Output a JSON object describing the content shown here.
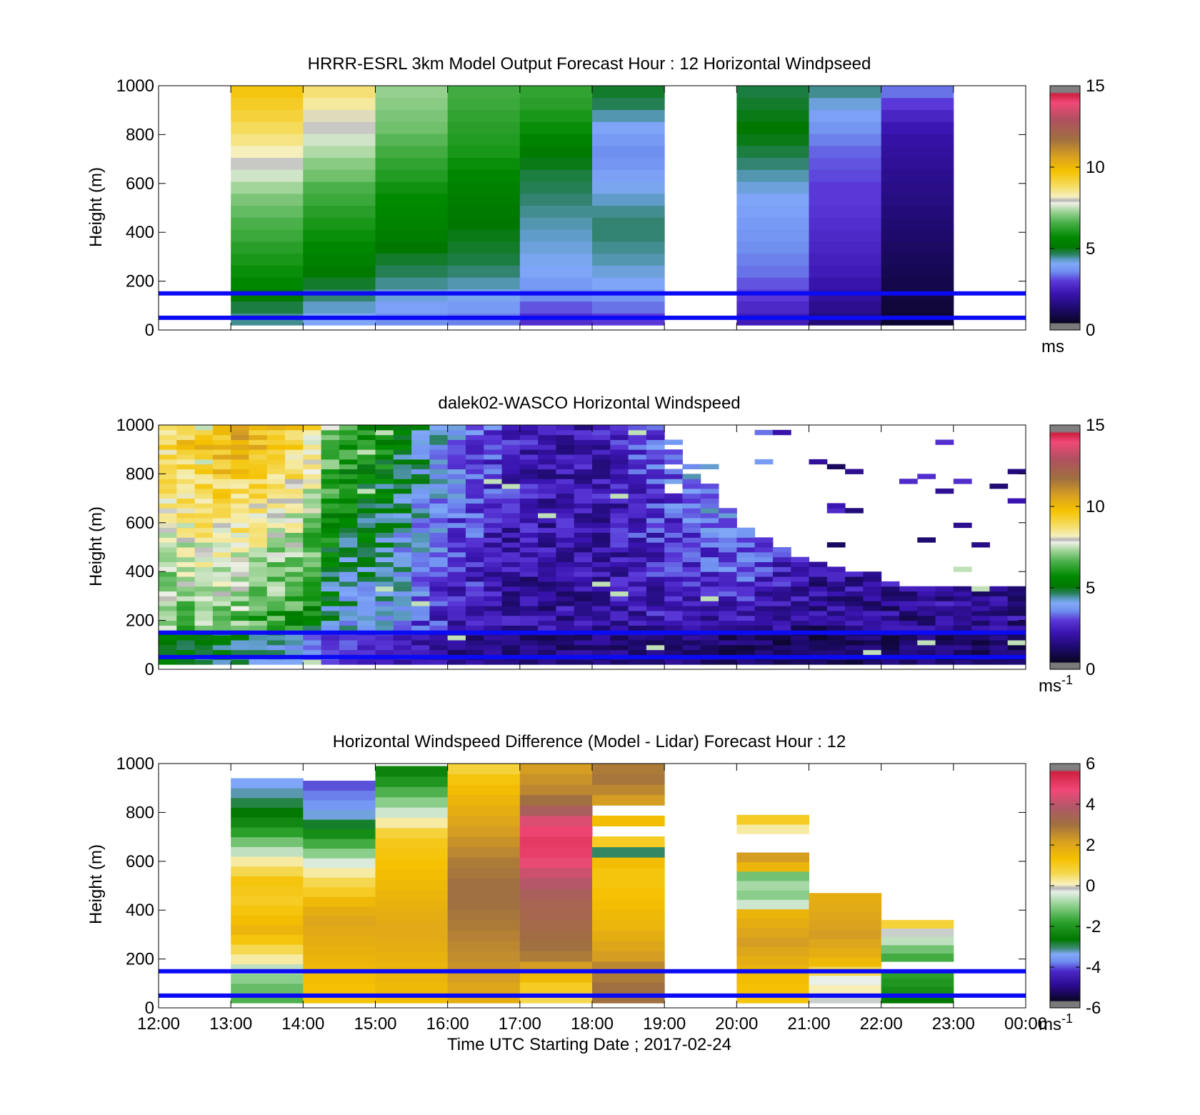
{
  "chart_data": [
    {
      "type": "heatmap",
      "id": "model",
      "title": "HRRR-ESRL 3km Model Output   Forecast Hour : 12 Horizontal Windpseed",
      "ylabel": "Height (m)",
      "xlabel": "",
      "ylim": [
        0,
        1000
      ],
      "yticks": [
        "0",
        "200",
        "400",
        "600",
        "800",
        "1000"
      ],
      "xlim_hours": [
        12,
        24
      ],
      "xticks": [],
      "colorbar": {
        "min": 0,
        "max": 15,
        "ticks": [
          "0",
          "5",
          "10",
          "15"
        ],
        "unit": "ms",
        "unit_sup": "",
        "palette": "windspeed"
      },
      "reference_lines_m": [
        50,
        150
      ],
      "columns": [
        {
          "t0": 13,
          "t1": 14,
          "zmin": 20,
          "levels": [
            4.5,
            4.8,
            5.2,
            5.6,
            5.8,
            6.0,
            6.2,
            6.4,
            6.6,
            6.8,
            7.0,
            7.3,
            7.6,
            7.9,
            8.2,
            8.6,
            8.9,
            9.2,
            9.4,
            9.6
          ]
        },
        {
          "t0": 14,
          "t1": 15,
          "zmin": 20,
          "levels": [
            4.0,
            4.3,
            4.6,
            4.9,
            5.2,
            5.4,
            5.6,
            5.8,
            6.0,
            6.2,
            6.4,
            6.6,
            6.9,
            7.1,
            7.4,
            7.6,
            7.9,
            8.1,
            8.4,
            8.7
          ]
        },
        {
          "t0": 15,
          "t1": 16,
          "zmin": 20,
          "levels": [
            3.6,
            3.9,
            4.2,
            4.5,
            4.7,
            4.9,
            5.1,
            5.3,
            5.5,
            5.6,
            5.7,
            5.9,
            6.1,
            6.3,
            6.5,
            6.7,
            6.9,
            7.0,
            7.1,
            7.2
          ]
        },
        {
          "t0": 16,
          "t1": 17,
          "zmin": 20,
          "levels": [
            3.5,
            3.8,
            4.1,
            4.4,
            4.6,
            4.8,
            4.9,
            5.0,
            5.1,
            5.2,
            5.3,
            5.4,
            5.6,
            5.8,
            6.0,
            6.1,
            6.2,
            6.3,
            6.4,
            6.5
          ]
        },
        {
          "t0": 17,
          "t1": 18,
          "zmin": 20,
          "levels": [
            2.8,
            3.2,
            3.6,
            3.8,
            4.0,
            4.1,
            4.2,
            4.3,
            4.4,
            4.5,
            4.6,
            4.7,
            4.8,
            5.0,
            5.2,
            5.5,
            5.8,
            6.0,
            6.2,
            6.3
          ]
        },
        {
          "t0": 18,
          "t1": 19,
          "zmin": 20,
          "levels": [
            3.0,
            3.4,
            3.7,
            4.0,
            4.2,
            4.4,
            4.5,
            4.6,
            4.6,
            4.5,
            4.3,
            4.1,
            3.9,
            3.7,
            3.6,
            3.8,
            4.0,
            4.4,
            4.7,
            4.9
          ]
        },
        {
          "t0": 20,
          "t1": 21,
          "zmin": 20,
          "levels": [
            2.4,
            2.7,
            3.0,
            3.2,
            3.4,
            3.5,
            3.6,
            3.7,
            3.8,
            3.9,
            4.0,
            4.2,
            4.4,
            4.6,
            4.8,
            5.0,
            5.1,
            5.0,
            4.9,
            4.8
          ]
        },
        {
          "t0": 21,
          "t1": 22,
          "zmin": 20,
          "levels": [
            1.5,
            1.8,
            2.0,
            2.2,
            2.4,
            2.5,
            2.6,
            2.7,
            2.8,
            2.9,
            3.0,
            3.0,
            3.1,
            3.2,
            3.3,
            3.5,
            3.7,
            3.9,
            4.2,
            4.5
          ]
        },
        {
          "t0": 22,
          "t1": 23,
          "zmin": 20,
          "levels": [
            0.6,
            0.7,
            0.8,
            0.9,
            1.0,
            1.1,
            1.2,
            1.3,
            1.4,
            1.5,
            1.6,
            1.7,
            1.8,
            1.9,
            2.0,
            2.1,
            2.3,
            2.6,
            3.0,
            3.4
          ]
        }
      ]
    },
    {
      "type": "heatmap",
      "id": "lidar",
      "title": "dalek02-WASCO  Horizontal Windspeed",
      "ylabel": "Height (m)",
      "xlabel": "",
      "ylim": [
        0,
        1000
      ],
      "yticks": [
        "0",
        "200",
        "400",
        "600",
        "800",
        "1000"
      ],
      "xlim_hours": [
        12,
        24
      ],
      "xticks": [],
      "colorbar": {
        "min": 0,
        "max": 15,
        "ticks": [
          "0",
          "5",
          "10",
          "15"
        ],
        "unit": "ms",
        "unit_sup": "-1",
        "palette": "windspeed"
      },
      "reference_lines_m": [
        50,
        150
      ],
      "profile_trend": {
        "times": [
          12,
          13,
          14,
          14.5,
          15,
          15.5,
          16,
          17,
          18,
          19,
          20,
          21,
          22,
          23,
          24
        ],
        "speed_low": [
          6.5,
          6.0,
          5.0,
          3.5,
          3.5,
          3.0,
          2.2,
          1.8,
          2.0,
          2.0,
          1.6,
          1.4,
          1.5,
          1.6,
          1.7
        ],
        "speed_high": [
          9.0,
          10.5,
          9.5,
          6.5,
          6.0,
          5.0,
          4.0,
          2.5,
          2.2,
          3.5,
          4.0,
          2.0,
          2.0,
          2.0,
          2.0
        ],
        "top_m": [
          1000,
          1000,
          1000,
          1000,
          1000,
          1000,
          1000,
          1000,
          1000,
          1000,
          600,
          430,
          350,
          320,
          320
        ]
      }
    },
    {
      "type": "heatmap",
      "id": "difference",
      "title": "Horizontal Windspeed Difference (Model - Lidar) Forecast Hour : 12",
      "ylabel": "Height (m)",
      "xlabel": "Time UTC  Starting Date ; 2017-02-24",
      "ylim": [
        0,
        1000
      ],
      "yticks": [
        "0",
        "200",
        "400",
        "600",
        "800",
        "1000"
      ],
      "xlim_hours": [
        12,
        24
      ],
      "xticks": [
        "12:00",
        "13:00",
        "14:00",
        "15:00",
        "16:00",
        "17:00",
        "18:00",
        "19:00",
        "20:00",
        "21:00",
        "22:00",
        "23:00",
        "00:00"
      ],
      "colorbar": {
        "min": -6,
        "max": 6,
        "ticks": [
          "-6",
          "-4",
          "-2",
          "0",
          "2",
          "4",
          "6"
        ],
        "unit": "ms",
        "unit_sup": "-1",
        "palette": "difference"
      },
      "reference_lines_m": [
        50,
        150
      ],
      "columns": [
        {
          "t0": 13,
          "t1": 14,
          "zmin": 20,
          "zmax": 940,
          "levels": [
            -1.5,
            -1.3,
            -1.0,
            -0.6,
            0.2,
            0.6,
            1.2,
            1.6,
            1.4,
            1.2,
            1.0,
            1.1,
            1.2,
            0.6,
            0.2,
            -0.6,
            -1.2,
            -1.8,
            -2.3,
            -2.6,
            -2.9,
            -3.2,
            -3.4
          ]
        },
        {
          "t0": 14,
          "t1": 15,
          "zmin": 20,
          "zmax": 930,
          "levels": [
            1.2,
            1.3,
            1.4,
            1.5,
            1.6,
            1.7,
            1.8,
            1.9,
            2.0,
            1.8,
            1.5,
            1.0,
            0.6,
            0.2,
            -0.4,
            -1.0,
            -1.6,
            -2.2,
            -2.8,
            -3.3,
            -3.6,
            -3.8,
            -4.0
          ]
        },
        {
          "t0": 15,
          "t1": 16,
          "zmin": 20,
          "zmax": 990,
          "levels": [
            1.4,
            1.5,
            1.6,
            1.6,
            1.7,
            1.8,
            1.9,
            1.9,
            1.8,
            1.7,
            1.6,
            1.5,
            1.4,
            1.3,
            1.2,
            1.1,
            0.8,
            0.2,
            -0.5,
            -1.0,
            -1.5,
            -2.0,
            -2.4
          ]
        },
        {
          "t0": 16,
          "t1": 17,
          "zmin": 20,
          "zmax": 1000,
          "levels": [
            1.8,
            2.0,
            2.2,
            2.4,
            2.5,
            2.6,
            2.7,
            2.8,
            2.9,
            3.0,
            3.0,
            3.0,
            2.9,
            2.8,
            2.6,
            2.4,
            2.2,
            2.0,
            1.8,
            1.6,
            1.4,
            1.2,
            0.8
          ]
        },
        {
          "t0": 17,
          "t1": 18,
          "zmin": 20,
          "zmax": 1000,
          "levels": [
            0.6,
            1.0,
            1.5,
            2.2,
            2.8,
            3.0,
            3.1,
            3.2,
            3.3,
            3.4,
            3.6,
            3.9,
            4.2,
            4.6,
            4.9,
            5.0,
            4.8,
            4.4,
            3.6,
            3.0,
            2.6,
            2.4,
            2.2
          ]
        },
        {
          "t0": 18,
          "t1": 19,
          "zmin": 20,
          "zmax": 1000,
          "levels": [
            3.0,
            3.0,
            2.8,
            2.6,
            2.2,
            2.0,
            1.8,
            1.6,
            1.5,
            1.4,
            1.3,
            1.2,
            1.2,
            1.4,
            -3.0,
            1.0,
            -99,
            1.4,
            -99,
            2.2,
            2.6,
            2.9,
            2.8
          ]
        },
        {
          "t0": 20,
          "t1": 21,
          "zmin": 20,
          "zmax": 790,
          "levels": [
            1.2,
            1.3,
            1.4,
            1.6,
            1.8,
            2.0,
            2.2,
            2.0,
            1.8,
            1.6,
            -0.5,
            -1.0,
            -0.8,
            -1.2,
            1.6,
            2.2,
            -99,
            -99,
            0.2,
            1.0
          ]
        },
        {
          "t0": 21,
          "t1": 22,
          "zmin": 20,
          "zmax": 470,
          "levels": [
            -0.2,
            0.1,
            -0.3,
            0.6,
            1.5,
            1.8,
            2.0,
            2.2,
            2.1,
            2.0,
            1.9,
            1.8
          ]
        },
        {
          "t0": 22,
          "t1": 23,
          "zmin": 20,
          "zmax": 360,
          "levels": [
            -2.6,
            -2.2,
            -2.0,
            -1.8,
            -99,
            -1.6,
            -1.2,
            -0.6,
            -0.2,
            0.8
          ]
        }
      ]
    }
  ]
}
